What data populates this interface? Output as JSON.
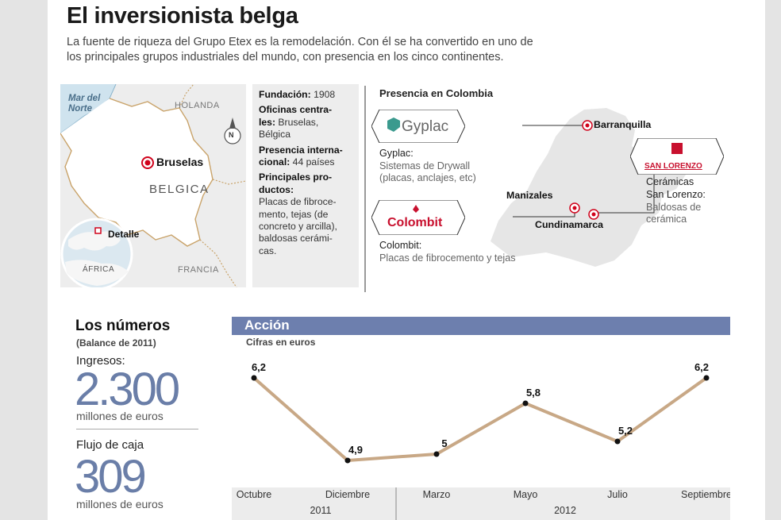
{
  "header": {
    "title": "El inversionista belga",
    "intro_line1": "La fuente de riqueza del Grupo Etex es la remodelación. Con él se ha convertido en uno de",
    "intro_line2": "los principales grupos industriales del mundo, con presencia en los cinco continentes."
  },
  "map_belgica": {
    "sea_label_1": "Mar del",
    "sea_label_2": "Norte",
    "north_label": "HOLANDA",
    "capital_label": "Bruselas",
    "country_label": "BELGICA",
    "south_label": "FRANCIA",
    "detail_label": "Detalle",
    "continent_label": "ÁFRICA",
    "compass": "N"
  },
  "info": {
    "fundacion_label": "Fundación:",
    "fundacion_value": "1908",
    "oficinas_label_1": "Oficinas centra-",
    "oficinas_label_2": "les:",
    "oficinas_value_1": "Bruselas,",
    "oficinas_value_2": "Bélgica",
    "presencia_label_1": "Presencia interna-",
    "presencia_label_2": "cional:",
    "presencia_value": "44 países",
    "productos_label_1": "Principales pro-",
    "productos_label_2": "ductos:",
    "productos_lines": [
      "Placas de fibroce-",
      "mento, tejas (de",
      "concreto y arcilla),",
      "baldosas cerámi-",
      "cas."
    ]
  },
  "colombia": {
    "title": "Presencia en Colombia",
    "cities": [
      "Barranquilla",
      "Manizales",
      "Cundinamarca"
    ],
    "gyplac": {
      "logo": "Gyplac",
      "name": "Gyplac:",
      "desc_1": "Sistemas de Drywall",
      "desc_2": "(placas, anclajes, etc)"
    },
    "colombit": {
      "logo": "Colombit",
      "name": "Colombit:",
      "desc_1": "Placas de fibrocemento y tejas"
    },
    "sanlorenzo": {
      "logo": "SAN LORENZO",
      "name_1": "Cerámicas",
      "name_2": "San Lorenzo:",
      "desc_1": "Baldosas de",
      "desc_2": "cerámica"
    }
  },
  "numbers": {
    "title": "Los números",
    "subtitle": "(Balance de 2011)",
    "ingresos_label": "Ingresos:",
    "ingresos_value": "2.300",
    "ingresos_unit": "millones de euros",
    "flujo_label": "Flujo de caja",
    "flujo_value": "309",
    "flujo_unit": "millones de euros"
  },
  "chart_data": {
    "type": "line",
    "title": "Acción",
    "subtitle": "Cifras en euros",
    "categories": [
      "Octubre",
      "Diciembre",
      "Marzo",
      "Mayo",
      "Julio",
      "Septiembre"
    ],
    "values": [
      6.2,
      4.9,
      5,
      5.8,
      5.2,
      6.2
    ],
    "value_labels": [
      "6,2",
      "4,9",
      "5",
      "5,8",
      "5,2",
      "6,2"
    ],
    "year_groups": [
      {
        "label": "2011",
        "span": [
          0,
          1
        ]
      },
      {
        "label": "2012",
        "span": [
          2,
          5
        ]
      }
    ],
    "ylim": [
      4.5,
      6.5
    ],
    "line_color": "#c8a886",
    "grid": false,
    "legend": "none"
  },
  "colors": {
    "accent_blue": "#6d7fae",
    "number_blue": "#6a7ea8",
    "marker_red": "#d0021b",
    "chart_line": "#c8a886"
  }
}
